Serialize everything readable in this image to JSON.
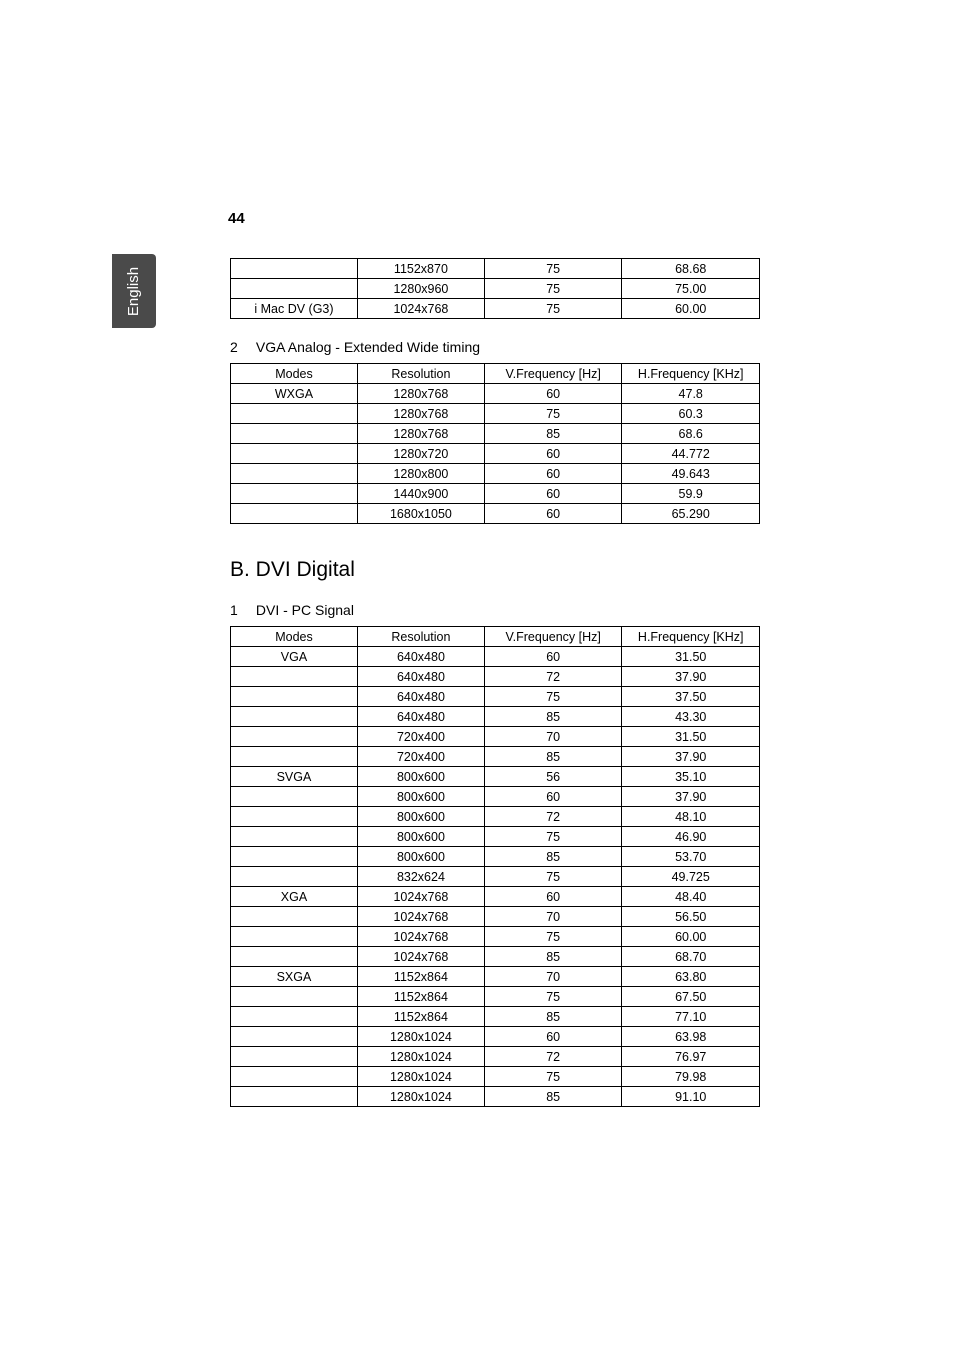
{
  "page_number": "44",
  "side_tab": "English",
  "colors": {
    "tab_bg": "#4a4a4a",
    "tab_text": "#ffffff",
    "border": "#000000",
    "text": "#000000",
    "bg": "#ffffff"
  },
  "table1": {
    "rows": [
      [
        "",
        "1152x870",
        "75",
        "68.68"
      ],
      [
        "",
        "1280x960",
        "75",
        "75.00"
      ],
      [
        "i Mac DV (G3)",
        "1024x768",
        "75",
        "60.00"
      ]
    ]
  },
  "section2": {
    "num": "2",
    "title": "VGA Analog - Extended Wide timing"
  },
  "table2": {
    "headers": [
      "Modes",
      "Resolution",
      "V.Frequency [Hz]",
      "H.Frequency [KHz]"
    ],
    "rows": [
      [
        "WXGA",
        "1280x768",
        "60",
        "47.8"
      ],
      [
        "",
        "1280x768",
        "75",
        "60.3"
      ],
      [
        "",
        "1280x768",
        "85",
        "68.6"
      ],
      [
        "",
        "1280x720",
        "60",
        "44.772"
      ],
      [
        "",
        "1280x800",
        "60",
        "49.643"
      ],
      [
        "",
        "1440x900",
        "60",
        "59.9"
      ],
      [
        "",
        "1680x1050",
        "60",
        "65.290"
      ]
    ]
  },
  "heading_b": "B. DVI Digital",
  "section3": {
    "num": "1",
    "title": "DVI - PC Signal"
  },
  "table3": {
    "headers": [
      "Modes",
      "Resolution",
      "V.Frequency [Hz]",
      "H.Frequency [KHz]"
    ],
    "rows": [
      [
        "VGA",
        "640x480",
        "60",
        "31.50"
      ],
      [
        "",
        "640x480",
        "72",
        "37.90"
      ],
      [
        "",
        "640x480",
        "75",
        "37.50"
      ],
      [
        "",
        "640x480",
        "85",
        "43.30"
      ],
      [
        "",
        "720x400",
        "70",
        "31.50"
      ],
      [
        "",
        "720x400",
        "85",
        "37.90"
      ],
      [
        "SVGA",
        "800x600",
        "56",
        "35.10"
      ],
      [
        "",
        "800x600",
        "60",
        "37.90"
      ],
      [
        "",
        "800x600",
        "72",
        "48.10"
      ],
      [
        "",
        "800x600",
        "75",
        "46.90"
      ],
      [
        "",
        "800x600",
        "85",
        "53.70"
      ],
      [
        "",
        "832x624",
        "75",
        "49.725"
      ],
      [
        "XGA",
        "1024x768",
        "60",
        "48.40"
      ],
      [
        "",
        "1024x768",
        "70",
        "56.50"
      ],
      [
        "",
        "1024x768",
        "75",
        "60.00"
      ],
      [
        "",
        "1024x768",
        "85",
        "68.70"
      ],
      [
        "SXGA",
        "1152x864",
        "70",
        "63.80"
      ],
      [
        "",
        "1152x864",
        "75",
        "67.50"
      ],
      [
        "",
        "1152x864",
        "85",
        "77.10"
      ],
      [
        "",
        "1280x1024",
        "60",
        "63.98"
      ],
      [
        "",
        "1280x1024",
        "72",
        "76.97"
      ],
      [
        "",
        "1280x1024",
        "75",
        "79.98"
      ],
      [
        "",
        "1280x1024",
        "85",
        "91.10"
      ]
    ]
  },
  "col_widths": [
    "24%",
    "24%",
    "26%",
    "26%"
  ]
}
